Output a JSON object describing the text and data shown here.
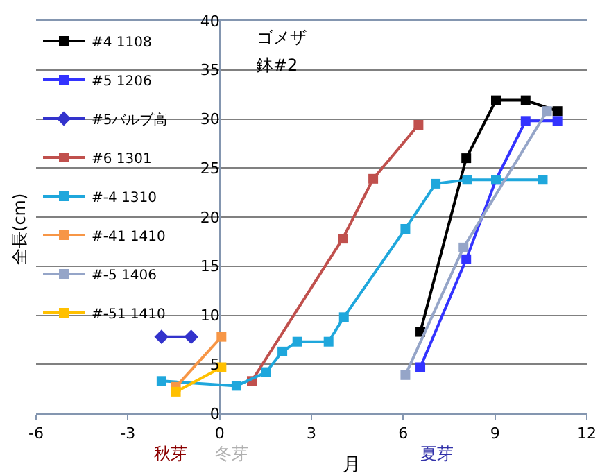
{
  "chart_data": {
    "type": "line",
    "xlabel": "月",
    "ylabel": "全長(cm)",
    "annotations": [
      "ゴメザ",
      "鉢#2",
      "秋芽",
      "冬芽",
      "夏芽"
    ],
    "xlim": [
      -6,
      12
    ],
    "xticks": [
      -6,
      -3,
      0,
      3,
      6,
      9,
      12
    ],
    "ylim": [
      0,
      40
    ],
    "yticks": [
      0,
      5,
      10,
      15,
      20,
      25,
      30,
      35,
      40
    ],
    "grid": "y",
    "legend": "top left",
    "marker": "square",
    "line_style": "solid",
    "series": [
      {
        "name": "#4 1108",
        "color": "#000000",
        "x": [
          6.56,
          8.06,
          9.03,
          10.0,
          11.04
        ],
        "values": [
          8.3,
          26,
          31.9,
          31.9,
          30.8
        ]
      },
      {
        "name": "#5 1206",
        "color": "#3333ff",
        "x": [
          6.56,
          8.06,
          9.03,
          10.0,
          11.04
        ],
        "values": [
          4.7,
          15.7,
          23.8,
          29.8,
          29.8
        ]
      },
      {
        "name": "#5バルブ高",
        "color": "#3333cc",
        "marker": "diamond",
        "x": [
          -1.9,
          -0.93
        ],
        "values": [
          7.8,
          7.8
        ]
      },
      {
        "name": "#6 1301",
        "color": "#c0504d",
        "x": [
          1.05,
          4.02,
          5.02,
          6.5
        ],
        "values": [
          3.3,
          17.8,
          23.9,
          29.4
        ]
      },
      {
        "name": "#-4 1310",
        "color": "#1fa7dc",
        "x": [
          -1.9,
          0.55,
          1.52,
          2.05,
          2.54,
          3.56,
          4.06,
          6.07,
          7.06,
          8.09,
          9.03,
          10.56
        ],
        "values": [
          3.3,
          2.8,
          4.2,
          6.3,
          7.3,
          7.3,
          9.8,
          18.8,
          23.4,
          23.8,
          23.8,
          23.8
        ]
      },
      {
        "name": "#-41 1410",
        "color": "#f79646",
        "x": [
          -1.43,
          0.06
        ],
        "values": [
          2.7,
          7.8
        ]
      },
      {
        "name": "#-5 1406",
        "color": "#95a5c8",
        "x": [
          6.07,
          7.97,
          10.7
        ],
        "values": [
          3.9,
          16.9,
          30.8
        ]
      },
      {
        "name": "#-51 1410",
        "color": "#ffc000",
        "x": [
          -1.43,
          0.06
        ],
        "values": [
          2.2,
          4.7
        ]
      }
    ]
  }
}
